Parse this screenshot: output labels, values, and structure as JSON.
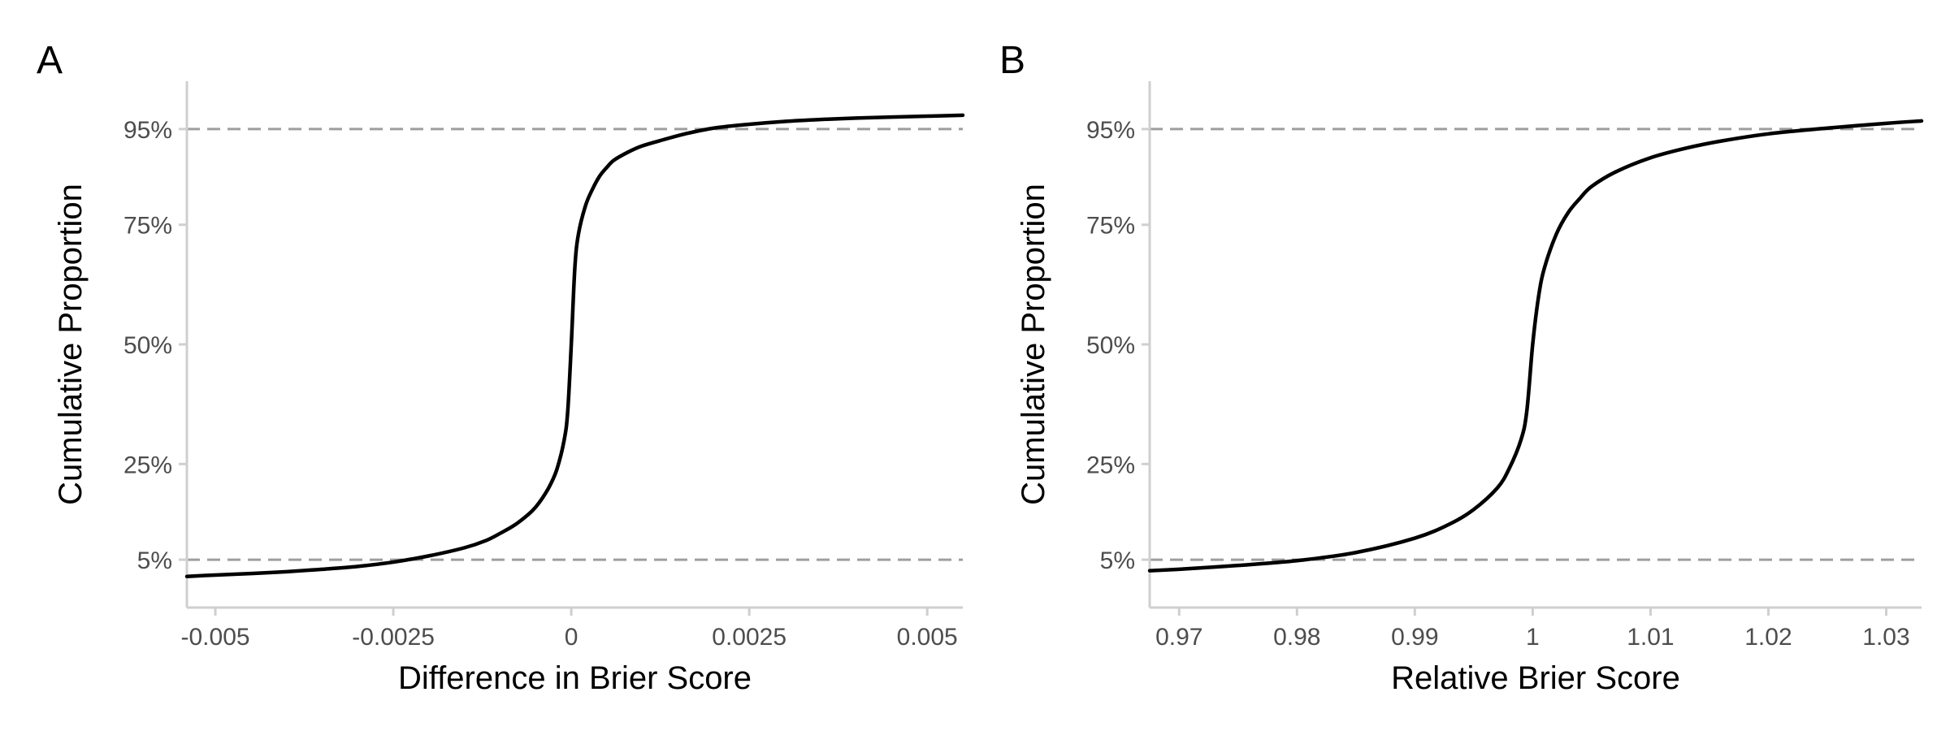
{
  "chart_data": [
    {
      "type": "line",
      "panel_label": "A",
      "title": "",
      "xlabel": "Difference in Brier Score",
      "ylabel": "Cumulative Proportion",
      "xlim": [
        -0.0054,
        0.0055
      ],
      "ylim": [
        -0.05,
        1.05
      ],
      "x_ticks": [
        -0.005,
        -0.0025,
        0,
        0.0025,
        0.005
      ],
      "x_tick_labels": [
        "-0.005",
        "-0.0025",
        "0",
        "0.0025",
        "0.005"
      ],
      "y_ticks": [
        0.05,
        0.25,
        0.5,
        0.75,
        0.95
      ],
      "y_tick_labels": [
        "5%",
        "25%",
        "50%",
        "75%",
        "95%"
      ],
      "reference_lines_y": [
        0.05,
        0.95
      ],
      "grid": false,
      "series": [
        {
          "x": [
            -0.0054,
            -0.005,
            -0.0045,
            -0.004,
            -0.0035,
            -0.003,
            -0.0025,
            -0.002,
            -0.0015,
            -0.0012,
            -0.001,
            -0.0008,
            -0.0006,
            -0.0005,
            -0.0004,
            -0.0003,
            -0.0002,
            -0.0001,
            -5e-05,
            0,
            5e-05,
            0.0001,
            0.0002,
            0.0003,
            0.0004,
            0.0005,
            0.0006,
            0.0008,
            0.001,
            0.0013,
            0.0016,
            0.002,
            0.0025,
            0.003,
            0.0035,
            0.004,
            0.0045,
            0.005,
            0.0055
          ],
          "y": [
            0.015,
            0.018,
            0.021,
            0.025,
            0.03,
            0.036,
            0.045,
            0.058,
            0.075,
            0.09,
            0.105,
            0.122,
            0.145,
            0.16,
            0.18,
            0.205,
            0.24,
            0.3,
            0.36,
            0.5,
            0.66,
            0.73,
            0.79,
            0.825,
            0.852,
            0.87,
            0.885,
            0.902,
            0.915,
            0.928,
            0.94,
            0.952,
            0.96,
            0.966,
            0.97,
            0.973,
            0.975,
            0.977,
            0.979
          ]
        }
      ]
    },
    {
      "type": "line",
      "panel_label": "B",
      "title": "",
      "xlabel": "Relative Brier Score",
      "ylabel": "Cumulative Proportion",
      "xlim": [
        0.9675,
        1.033
      ],
      "ylim": [
        -0.05,
        1.05
      ],
      "x_ticks": [
        0.97,
        0.98,
        0.99,
        1.0,
        1.01,
        1.02,
        1.03
      ],
      "x_tick_labels": [
        "0.97",
        "0.98",
        "0.99",
        "1",
        "1.01",
        "1.02",
        "1.03"
      ],
      "y_ticks": [
        0.05,
        0.25,
        0.5,
        0.75,
        0.95
      ],
      "y_tick_labels": [
        "5%",
        "25%",
        "50%",
        "75%",
        "95%"
      ],
      "reference_lines_y": [
        0.05,
        0.95
      ],
      "grid": false,
      "series": [
        {
          "x": [
            0.9675,
            0.97,
            0.975,
            0.98,
            0.985,
            0.99,
            0.993,
            0.995,
            0.997,
            0.998,
            0.999,
            0.9995,
            1.0,
            1.0005,
            1.001,
            1.002,
            1.003,
            1.004,
            1.005,
            1.007,
            1.01,
            1.013,
            1.016,
            1.02,
            1.025,
            1.03,
            1.033
          ],
          "y": [
            0.027,
            0.03,
            0.038,
            0.048,
            0.065,
            0.095,
            0.125,
            0.155,
            0.2,
            0.24,
            0.3,
            0.36,
            0.5,
            0.6,
            0.66,
            0.73,
            0.775,
            0.805,
            0.83,
            0.86,
            0.89,
            0.91,
            0.925,
            0.94,
            0.952,
            0.962,
            0.967
          ]
        }
      ]
    }
  ]
}
